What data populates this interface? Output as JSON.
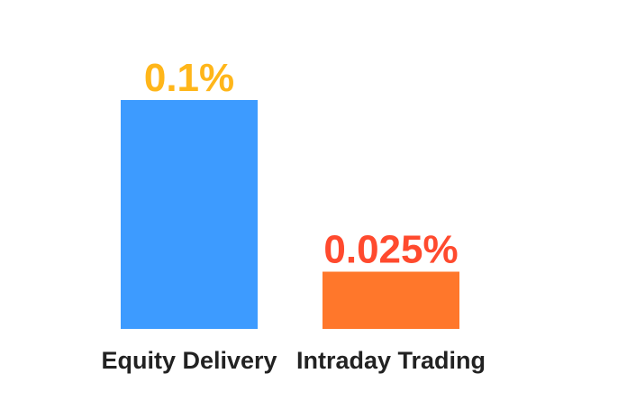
{
  "chart_data": {
    "type": "bar",
    "categories": [
      "Equity Delivery",
      "Intraday Trading"
    ],
    "values": [
      0.1,
      0.025
    ],
    "value_labels": [
      "0.1%",
      "0.025%"
    ],
    "bar_colors": [
      "#3d9bff",
      "#ff772b"
    ],
    "label_colors": [
      "#ffb61a",
      "#ff4a2e"
    ],
    "ylim": [
      0,
      0.1
    ],
    "grid": false,
    "legend": "none",
    "title": "",
    "xlabel": "",
    "ylabel": ""
  }
}
